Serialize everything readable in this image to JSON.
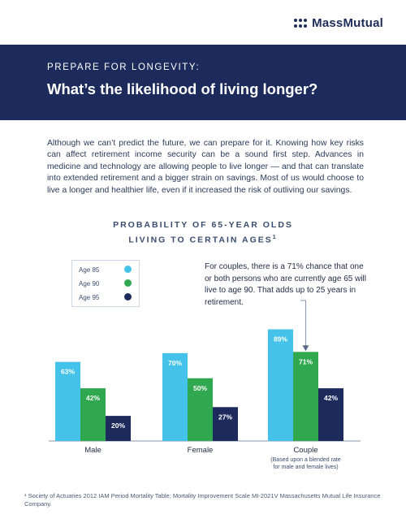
{
  "header": {
    "logo_text": "MassMutual"
  },
  "banner": {
    "kicker": "PREPARE FOR LONGEVITY:",
    "headline": "What’s the likelihood of living longer?"
  },
  "intro": "Although we can’t predict the future, we can prepare for it. Knowing how key risks can affect retirement income security can be a sound first step. Advances in medicine and technology are allowing people to live longer — and that can translate into extended retirement and a bigger strain on savings. Most of us would choose to live a longer and healthier life, even if it increased the risk of outliving our savings.",
  "chart_data": {
    "type": "bar",
    "title_line1": "PROBABILITY OF 65-YEAR OLDS",
    "title_line2": "LIVING TO CERTAIN AGES",
    "title_sup": "1",
    "categories": [
      "Male",
      "Female",
      "Couple"
    ],
    "category_notes": [
      "",
      "",
      "(Based upon a blended rate for male and female lives)"
    ],
    "series": [
      {
        "name": "Age 85",
        "values": [
          63,
          70,
          89
        ],
        "color": "#45c2ea"
      },
      {
        "name": "Age 90",
        "values": [
          42,
          50,
          71
        ],
        "color": "#2fa84f"
      },
      {
        "name": "Age 95",
        "values": [
          20,
          27,
          42
        ],
        "color": "#1d2b5c"
      }
    ],
    "value_suffix": "%",
    "ylim": [
      0,
      100
    ],
    "legend": "top-left",
    "annotation": "For couples, there is a 71% chance that one or both persons who are currently age 65 will live to age 90. That adds up to 25 years in retirement."
  },
  "footnote": "¹ Society of Actuaries 2012 IAM Period Mortality Table; Mortality Improvement Scale MI-2021V Massachusetts Mutual Life Insurance Company."
}
